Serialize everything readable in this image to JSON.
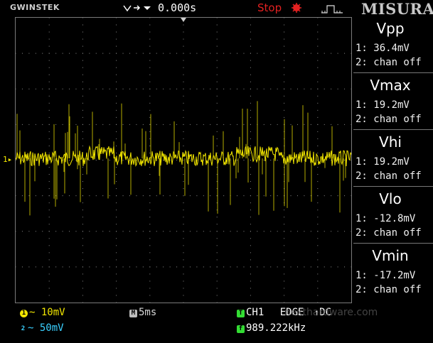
{
  "header": {
    "brand": "GWINSTEK",
    "trigger_time": "0.000s",
    "status": "Stop",
    "panel_title": "MISURA"
  },
  "screen": {
    "channel_marker": "1"
  },
  "measurements": [
    {
      "title": "Vpp",
      "ch1": "1: 36.4mV",
      "ch2": "2: chan off"
    },
    {
      "title": "Vmax",
      "ch1": "1: 19.2mV",
      "ch2": "2: chan off"
    },
    {
      "title": "Vhi",
      "ch1": "1: 19.2mV",
      "ch2": "2: chan off"
    },
    {
      "title": "Vlo",
      "ch1": "1: -12.8mV",
      "ch2": "2: chan off"
    },
    {
      "title": "Vmin",
      "ch1": "1: -17.2mV",
      "ch2": "2: chan off"
    }
  ],
  "footer": {
    "ch1_badge": "1",
    "ch1_scale": "~ 10mV",
    "ch2_badge": "2",
    "ch2_scale": "~ 50mV",
    "timebase_badge": "M",
    "timebase": "5ms",
    "trigger_badge": "T",
    "trigger_source": "CH1",
    "trigger_type": "EDGE",
    "trigger_coupling": "DC",
    "freq_badge": "f",
    "frequency": "989.222kHz"
  },
  "watermark": "nexthardware.com",
  "colors": {
    "ch1": "#f2e600",
    "ch2": "#3ad0ff",
    "trigger": "#33dd33",
    "stop": "#e32121",
    "grid": "#9a9a9a"
  }
}
